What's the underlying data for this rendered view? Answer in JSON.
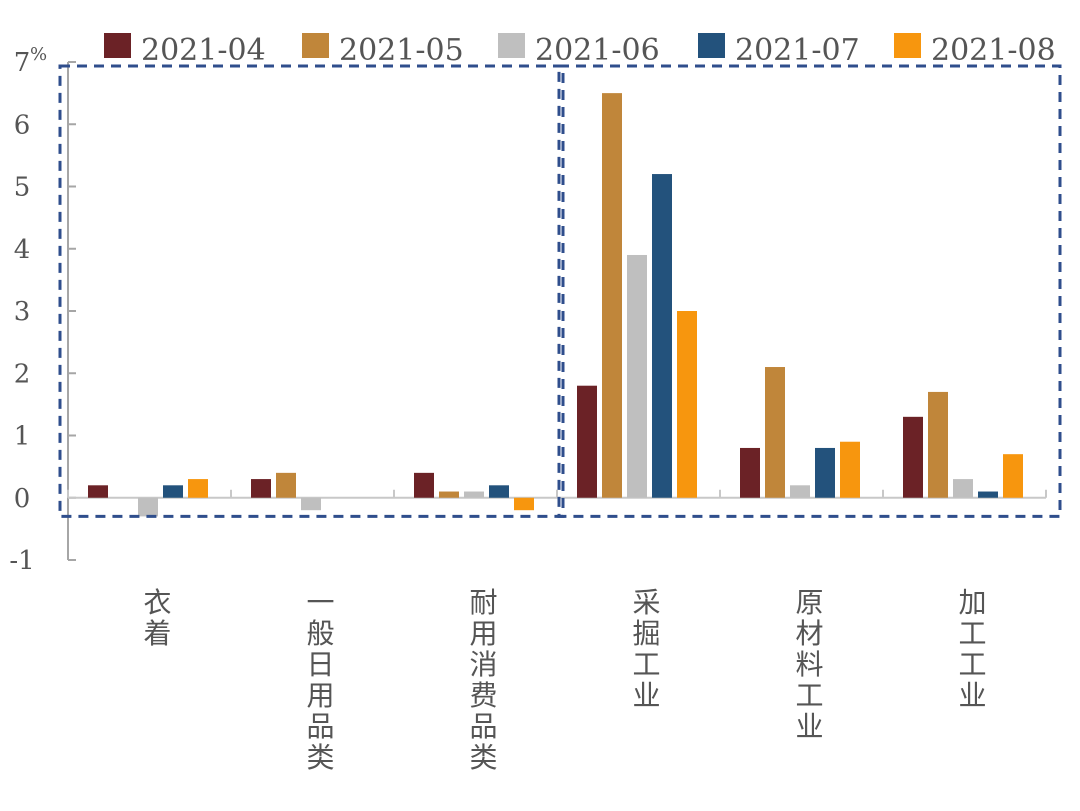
{
  "chart_data": {
    "type": "bar",
    "title": "",
    "xlabel": "",
    "ylabel": "",
    "unit": "%",
    "ylim": [
      -1,
      7
    ],
    "yticks": [
      -1,
      0,
      1,
      2,
      3,
      4,
      5,
      6,
      7
    ],
    "ytick_labels": [
      "-1",
      "0",
      "1",
      "2",
      "3",
      "4",
      "5",
      "6",
      "7"
    ],
    "legend_position": "top",
    "grid": false,
    "categories": [
      "衣着",
      "一般日用品类",
      "耐用消费品类",
      "采掘工业",
      "原材料工业",
      "加工工业"
    ],
    "series": [
      {
        "name": "2021-04",
        "color": "#6B2226",
        "values": [
          0.2,
          0.3,
          0.4,
          1.8,
          0.8,
          1.3
        ]
      },
      {
        "name": "2021-05",
        "color": "#C0863A",
        "values": [
          0.0,
          0.4,
          0.1,
          6.5,
          2.1,
          1.7
        ]
      },
      {
        "name": "2021-06",
        "color": "#BFBFBF",
        "values": [
          -0.3,
          -0.2,
          0.1,
          3.9,
          0.2,
          0.3
        ]
      },
      {
        "name": "2021-07",
        "color": "#23527C",
        "values": [
          0.2,
          0.0,
          0.2,
          5.2,
          0.8,
          0.1
        ]
      },
      {
        "name": "2021-08",
        "color": "#F7960E",
        "values": [
          0.3,
          0.0,
          -0.2,
          3.0,
          0.9,
          0.7
        ]
      }
    ],
    "annotations": [
      {
        "type": "dashed-box",
        "color": "#2F4E8C",
        "categories": [
          "衣着",
          "一般日用品类",
          "耐用消费品类"
        ]
      },
      {
        "type": "dashed-box",
        "color": "#2F4E8C",
        "categories": [
          "采掘工业",
          "原材料工业",
          "加工工业"
        ]
      }
    ]
  }
}
